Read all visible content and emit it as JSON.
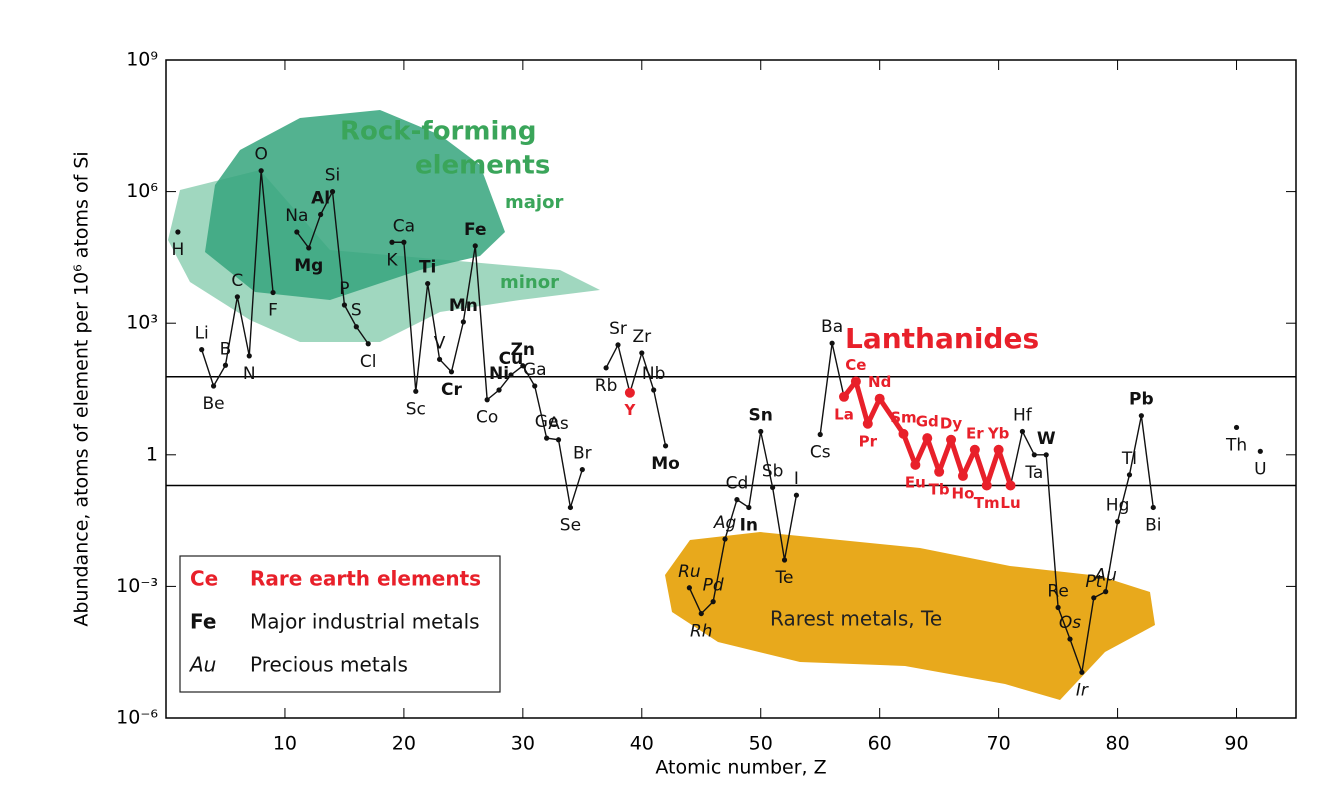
{
  "chart_data": {
    "type": "line",
    "ylabel": "Abundance, atoms of element per 10⁶ atoms of Si",
    "xlabel": "Atomic number, Z",
    "log_y": true,
    "xlim": [
      0,
      95
    ],
    "ylim": [
      1e-06,
      1000000000
    ],
    "xticks": [
      10,
      20,
      30,
      40,
      50,
      60,
      70,
      80,
      90
    ],
    "yticks": [
      {
        "value": 1000000000,
        "label": "10⁹"
      },
      {
        "value": 1000000,
        "label": "10⁶"
      },
      {
        "value": 1000,
        "label": "10³"
      },
      1,
      {
        "value": 0.001,
        "label": "10⁻³"
      },
      {
        "value": 1e-06,
        "label": "10⁻⁶"
      }
    ],
    "hlines": [
      60,
      0.2
    ],
    "line_color": "#111111",
    "ree_color": "#e8202a",
    "x": [
      1,
      2,
      3,
      4,
      5,
      6,
      7,
      8,
      9,
      10,
      11,
      12,
      13,
      14,
      15,
      16,
      17,
      18,
      19,
      20,
      21,
      22,
      23,
      24,
      25,
      26,
      27,
      28,
      29,
      30,
      31,
      32,
      33,
      34,
      35,
      36,
      37,
      38,
      39,
      40,
      41,
      42,
      43,
      44,
      45,
      46,
      47,
      48,
      49,
      50,
      51,
      52,
      53,
      54,
      55,
      56,
      57,
      58,
      59,
      60,
      62,
      63,
      64,
      65,
      66,
      67,
      68,
      69,
      70,
      71,
      72,
      73,
      74,
      75,
      76,
      77,
      78,
      79,
      80,
      81,
      82,
      83,
      84,
      90,
      91,
      92
    ],
    "values": [
      120000,
      null,
      250,
      37,
      110,
      4000,
      180,
      3000000,
      5000,
      null,
      120000,
      52000,
      300000,
      1000000,
      2600,
      830,
      340,
      null,
      70000,
      70000,
      28,
      8000,
      150,
      78,
      1070,
      58000,
      18,
      30,
      66,
      107,
      37,
      2.4,
      2.2,
      0.063,
      0.46,
      null,
      96,
      320,
      26,
      210,
      30,
      1.6,
      null,
      0.00093,
      0.00024,
      0.00045,
      0.012,
      0.095,
      0.063,
      3.4,
      0.18,
      0.004,
      0.12,
      null,
      2.9,
      350,
      21,
      47,
      5.1,
      19,
      3.0,
      0.59,
      2.4,
      0.41,
      2.2,
      0.33,
      1.3,
      0.2,
      1.3,
      0.2,
      3.4,
      1,
      1,
      0.00033,
      6.3e-05,
      1.1e-05,
      0.00055,
      0.00076,
      0.03,
      0.35,
      7.8,
      0.063,
      null,
      4.2,
      null,
      1.2
    ],
    "labels": [
      "H",
      null,
      "Li",
      "Be",
      "B",
      "C",
      "N",
      "O",
      "F",
      null,
      "Na",
      "Mg",
      "Al",
      "Si",
      "P",
      "S",
      "Cl",
      null,
      "K",
      "Ca",
      "Sc",
      "Ti",
      "V",
      "Cr",
      "Mn",
      "Fe",
      "Co",
      "Ni",
      "Cu",
      "Zn",
      "Ga",
      "Ge",
      "As",
      "Se",
      "Br",
      null,
      "Rb",
      "Sr",
      "Y",
      "Zr",
      "Nb",
      "Mo",
      null,
      "Ru",
      "Rh",
      "Pd",
      "Ag",
      "Cd",
      "In",
      "Sn",
      "Sb",
      "Te",
      "I",
      null,
      "Cs",
      "Ba",
      "La",
      "Ce",
      "Pr",
      "Nd",
      "Sm",
      "Eu",
      "Gd",
      "Tb",
      "Dy",
      "Ho",
      "Er",
      "Tm",
      "Yb",
      "Lu",
      "Hf",
      "Ta",
      "W",
      "Re",
      "Os",
      "Ir",
      "Pt",
      "Au",
      "Hg",
      "Tl",
      "Pb",
      "Bi",
      null,
      "Th",
      null,
      "U"
    ],
    "groups": [
      "normal",
      null,
      "normal",
      "normal",
      "normal",
      "normal",
      "normal",
      "normal",
      "normal",
      null,
      "normal",
      "industrial",
      "industrial",
      "normal",
      "normal",
      "normal",
      "normal",
      null,
      "normal",
      "normal",
      "normal",
      "industrial",
      "normal",
      "industrial",
      "industrial",
      "industrial",
      "normal",
      "industrial",
      "industrial",
      "industrial",
      "normal",
      "normal",
      "normal",
      "normal",
      "normal",
      null,
      "normal",
      "normal",
      "ree",
      "normal",
      "normal",
      "industrial",
      null,
      "precious",
      "precious",
      "precious",
      "precious",
      "normal",
      "industrial",
      "industrial",
      "normal",
      "normal",
      "normal",
      null,
      "normal",
      "normal",
      "ree",
      "ree",
      "ree",
      "ree",
      "ree",
      "ree",
      "ree",
      "ree",
      "ree",
      "ree",
      "ree",
      "ree",
      "ree",
      "ree",
      "normal",
      "normal",
      "industrial",
      "normal",
      "precious",
      "precious",
      "precious",
      "precious",
      "normal",
      "normal",
      "industrial",
      "normal",
      null,
      "normal",
      null,
      "normal"
    ],
    "annotations": [
      "Rock-forming",
      "elements",
      "major",
      "minor",
      "Lanthanides",
      "Rarest metals, Te"
    ],
    "legend": [
      {
        "symbol": "Ce",
        "text": "Rare earth elements",
        "group": "ree"
      },
      {
        "symbol": "Fe",
        "text": "Major industrial metals",
        "group": "industrial"
      },
      {
        "symbol": "Au",
        "text": "Precious metals",
        "group": "precious"
      }
    ]
  }
}
